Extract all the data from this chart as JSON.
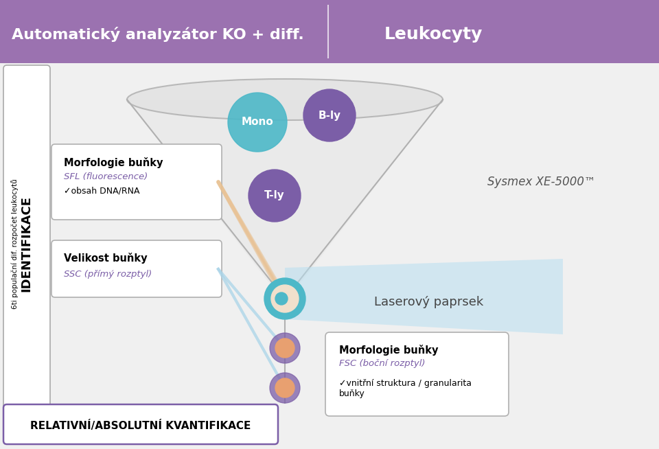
{
  "title_left": "Automatický analyzátor KO + diff.",
  "title_right": "Leukocyty",
  "header_bg": "#9b72b0",
  "header_text_color": "#ffffff",
  "bg_color": "#f0f0f0",
  "left_box_text": "IDENTIFIKACE",
  "left_box_subtext": "6ti populační dif. rozpočet leukocytů",
  "bottom_box_text": "RELATIVNÍ/ABSOLUTNÍ KVANTIFIKACE",
  "box1_title": "Morfologie buňky",
  "box1_sub": "SFL (fluorescence)",
  "box1_check": "✓obsah DNA/RNA",
  "box2_title": "Velikost buňky",
  "box2_sub": "SSC (přímý rozptyl)",
  "box3_title": "Morfologie buňky",
  "box3_sub": "FSC (boční rozptyl)",
  "box3_check": "✓vnitřní struktura / granularita\nbuňky",
  "laser_text": "Laserový paprsek",
  "sysmex_text": "Sysmex XE-5000™",
  "purple_color": "#7b5ea7",
  "teal_color": "#4db8c8",
  "orange_color": "#e8a070",
  "peach_color": "#f5c8a0",
  "light_blue": "#aad4e8",
  "funnel_gray": "#d8d8d8",
  "box_border": "#b0b0b0",
  "mono_label": "Mono",
  "bly_label": "B-ly",
  "tly_label": "T-ly"
}
